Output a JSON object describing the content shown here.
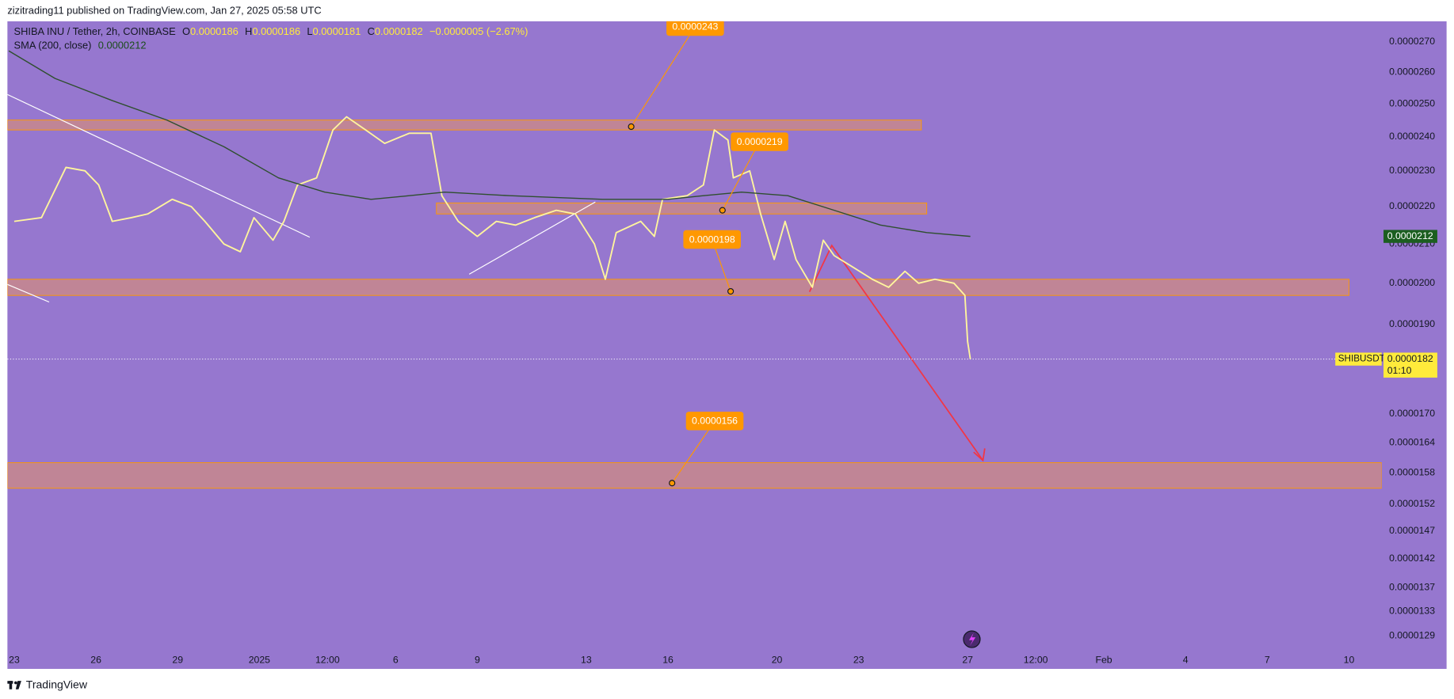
{
  "header": {
    "publisher": "zizitrading11 published on TradingView.com, Jan 27, 2025 05:58 UTC"
  },
  "footer": {
    "brand": "TradingView"
  },
  "legend": {
    "symbol": "SHIBA INU / Tether, 2h, COINBASE",
    "ohlc": [
      {
        "prefix": "O",
        "value": "0.0000186"
      },
      {
        "prefix": "H",
        "value": "0.0000186"
      },
      {
        "prefix": "L",
        "value": "0.0000181"
      },
      {
        "prefix": "C",
        "value": "0.0000182"
      }
    ],
    "change": "−0.0000005 (−2.67%)"
  },
  "chart_data": {
    "type": "line",
    "log_scale": true,
    "xlim": [
      -0.25,
      50.2
    ],
    "xticks": [
      {
        "value": 0,
        "label": "23"
      },
      {
        "value": 3,
        "label": "26"
      },
      {
        "value": 6,
        "label": "29"
      },
      {
        "value": 9,
        "label": "2025"
      },
      {
        "value": 11.5,
        "label": "12:00"
      },
      {
        "value": 14,
        "label": "6"
      },
      {
        "value": 17,
        "label": "9"
      },
      {
        "value": 21,
        "label": "13"
      },
      {
        "value": 24,
        "label": "16"
      },
      {
        "value": 28,
        "label": "20"
      },
      {
        "value": 31,
        "label": "23"
      },
      {
        "value": 35,
        "label": "27"
      },
      {
        "value": 37.5,
        "label": "12:00"
      },
      {
        "value": 40,
        "label": "Feb"
      },
      {
        "value": 43,
        "label": "4"
      },
      {
        "value": 46,
        "label": "7"
      },
      {
        "value": 49,
        "label": "10"
      }
    ],
    "ylim": [
      1.27e-05,
      2.77e-05
    ],
    "yticks": [
      {
        "value": 2.7e-05,
        "label": "0.0000270"
      },
      {
        "value": 2.6e-05,
        "label": "0.0000260"
      },
      {
        "value": 2.5e-05,
        "label": "0.0000250"
      },
      {
        "value": 2.4e-05,
        "label": "0.0000240"
      },
      {
        "value": 2.3e-05,
        "label": "0.0000230"
      },
      {
        "value": 2.2e-05,
        "label": "0.0000220"
      },
      {
        "value": 2.1e-05,
        "label": "0.0000210"
      },
      {
        "value": 2e-05,
        "label": "0.0000200"
      },
      {
        "value": 1.9e-05,
        "label": "0.0000190"
      },
      {
        "value": 1.7e-05,
        "label": "0.0000170"
      },
      {
        "value": 1.64e-05,
        "label": "0.0000164"
      },
      {
        "value": 1.58e-05,
        "label": "0.0000158"
      },
      {
        "value": 1.52e-05,
        "label": "0.0000152"
      },
      {
        "value": 1.47e-05,
        "label": "0.0000147"
      },
      {
        "value": 1.42e-05,
        "label": "0.0000142"
      },
      {
        "value": 1.37e-05,
        "label": "0.0000137"
      },
      {
        "value": 1.33e-05,
        "label": "0.0000133"
      },
      {
        "value": 1.29e-05,
        "label": "0.0000129"
      }
    ],
    "series": [
      {
        "name": "SHIBUSDT",
        "color": "#fff59d",
        "x": [
          0,
          1,
          1.9,
          2.6,
          3.1,
          3.6,
          4.3,
          4.9,
          5.8,
          6.5,
          7,
          7.7,
          8.3,
          8.8,
          9.5,
          9.9,
          10.4,
          11.1,
          11.7,
          12.2,
          12.9,
          13.6,
          14.5,
          15.3,
          15.7,
          16.3,
          17,
          17.7,
          18.4,
          19.1,
          19.9,
          20.6,
          21.3,
          21.7,
          22.1,
          23,
          23.5,
          23.8,
          24.7,
          25.3,
          25.7,
          26.2,
          26.4,
          27,
          27.4,
          27.9,
          28.3,
          28.7,
          29.3,
          29.7,
          30.1,
          30.8,
          31.5,
          32.1,
          32.7,
          33.2,
          33.8,
          34.5,
          34.9,
          35,
          35.1
        ],
        "values": [
          2.16e-05,
          2.17e-05,
          2.31e-05,
          2.3e-05,
          2.26e-05,
          2.16e-05,
          2.17e-05,
          2.18e-05,
          2.22e-05,
          2.2e-05,
          2.16e-05,
          2.1e-05,
          2.08e-05,
          2.17e-05,
          2.11e-05,
          2.16e-05,
          2.26e-05,
          2.28e-05,
          2.42e-05,
          2.46e-05,
          2.42e-05,
          2.38e-05,
          2.41e-05,
          2.41e-05,
          2.23e-05,
          2.16e-05,
          2.12e-05,
          2.16e-05,
          2.15e-05,
          2.17e-05,
          2.19e-05,
          2.18e-05,
          2.1e-05,
          2.01e-05,
          2.13e-05,
          2.16e-05,
          2.12e-05,
          2.22e-05,
          2.23e-05,
          2.26e-05,
          2.42e-05,
          2.39e-05,
          2.28e-05,
          2.3e-05,
          2.18e-05,
          2.06e-05,
          2.16e-05,
          2.06e-05,
          1.99e-05,
          2.11e-05,
          2.07e-05,
          2.04e-05,
          2.01e-05,
          1.99e-05,
          2.03e-05,
          2e-05,
          2.01e-05,
          2e-05,
          1.97e-05,
          1.86e-05,
          1.82e-05
        ]
      },
      {
        "name": "SMA (200, close)",
        "color": "#2f4f2f",
        "x": [
          -0.2,
          1.5,
          3.6,
          5.6,
          7.7,
          9.7,
          11.4,
          13.1,
          14.5,
          15.8,
          18.2,
          21.6,
          24,
          25.3,
          26.7,
          28.4,
          30.1,
          31.8,
          33.5,
          35.1
        ],
        "values": [
          2.67e-05,
          2.58e-05,
          2.51e-05,
          2.45e-05,
          2.37e-05,
          2.28e-05,
          2.24e-05,
          2.22e-05,
          2.23e-05,
          2.24e-05,
          2.23e-05,
          2.22e-05,
          2.22e-05,
          2.23e-05,
          2.24e-05,
          2.23e-05,
          2.19e-05,
          2.15e-05,
          2.13e-05,
          2.12e-05
        ]
      }
    ],
    "zones": [
      {
        "low": 2.42e-05,
        "high": 2.45e-05,
        "x": [
          -0.25,
          33.3
        ]
      },
      {
        "low": 2.18e-05,
        "high": 2.21e-05,
        "x": [
          15.5,
          33.5
        ]
      },
      {
        "low": 1.97e-05,
        "high": 2.01e-05,
        "x": [
          -0.25,
          49
        ]
      },
      {
        "low": 1.55e-05,
        "high": 1.6e-05,
        "x": [
          -0.25,
          50.2
        ]
      }
    ],
    "annotations": [
      {
        "label": "0.0000243",
        "value": 2.43e-05,
        "x": 22.65
      },
      {
        "label": "0.0000219",
        "value": 2.19e-05,
        "x": 26
      },
      {
        "label": "0.0000198",
        "value": 1.98e-05,
        "x": 26.3
      },
      {
        "label": "0.0000156",
        "value": 1.56e-05,
        "x": 24.15
      }
    ],
    "sma_marker": {
      "value": 2.12e-05,
      "label": "0.0000212"
    },
    "price_marker": {
      "value": 1.82e-05,
      "label": "0.0000182",
      "countdown": "01:10"
    }
  }
}
